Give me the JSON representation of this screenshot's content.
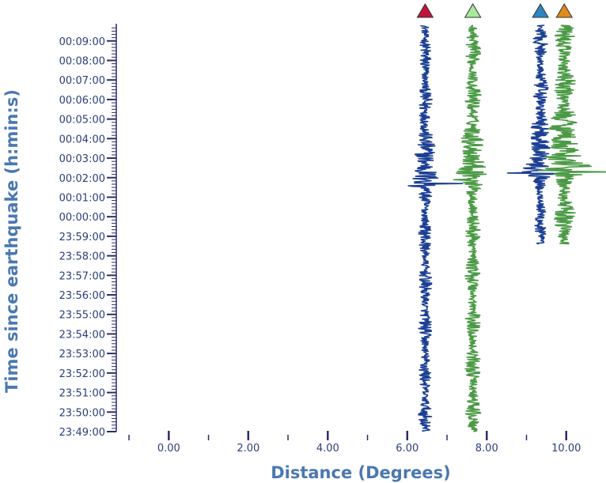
{
  "chart_data": {
    "type": "seismic-record-section",
    "xlabel": "Distance (Degrees)",
    "ylabel": "Time since earthquake (h:min:s)",
    "xlim": [
      -1.3,
      11.0
    ],
    "x_ticks": [
      "0.00",
      "2.00",
      "4.00",
      "6.00",
      "8.00",
      "10.00"
    ],
    "x_tick_values": [
      0,
      2,
      4,
      6,
      8,
      10
    ],
    "y_ticks": [
      "00:09:00",
      "00:08:00",
      "00:07:00",
      "00:06:00",
      "00:05:00",
      "00:04:00",
      "00:03:00",
      "00:02:00",
      "00:01:00",
      "00:00:00",
      "23:59:00",
      "23:58:00",
      "23:57:00",
      "23:56:00",
      "23:55:00",
      "23:54:00",
      "23:53:00",
      "23:52:00",
      "23:51:00",
      "23:50:00",
      "23:49:00"
    ],
    "y_tick_minutes": [
      9,
      8,
      7,
      6,
      5,
      4,
      3,
      2,
      1,
      0,
      -1,
      -2,
      -3,
      -4,
      -5,
      -6,
      -7,
      -8,
      -9,
      -10,
      -11
    ],
    "ylim_minutes": [
      -11.0,
      9.8
    ],
    "grid": false,
    "traces": [
      {
        "station_marker_color": "#c0143c",
        "trace_color": "#1c3f94",
        "distance_deg": 6.45,
        "start_min": -11.0,
        "end_min": 9.8,
        "noise_amp_deg": 0.17,
        "arrival_min": 1.7,
        "peak_amp_deg": 1.2
      },
      {
        "station_marker_color": "#a8e89a",
        "trace_color": "#4a9a45",
        "distance_deg": 7.65,
        "start_min": -11.0,
        "end_min": 9.8,
        "noise_amp_deg": 0.2,
        "arrival_min": 1.8,
        "peak_amp_deg": 1.0
      },
      {
        "station_marker_color": "#2e86c1",
        "trace_color": "#1c3f94",
        "distance_deg": 9.35,
        "start_min": -1.4,
        "end_min": 9.8,
        "noise_amp_deg": 0.18,
        "arrival_min": 2.2,
        "peak_amp_deg": 1.3
      },
      {
        "station_marker_color": "#e08a1e",
        "trace_color": "#4a9a45",
        "distance_deg": 9.95,
        "start_min": -1.4,
        "end_min": 9.8,
        "noise_amp_deg": 0.28,
        "arrival_min": 2.3,
        "peak_amp_deg": 1.2
      }
    ]
  }
}
